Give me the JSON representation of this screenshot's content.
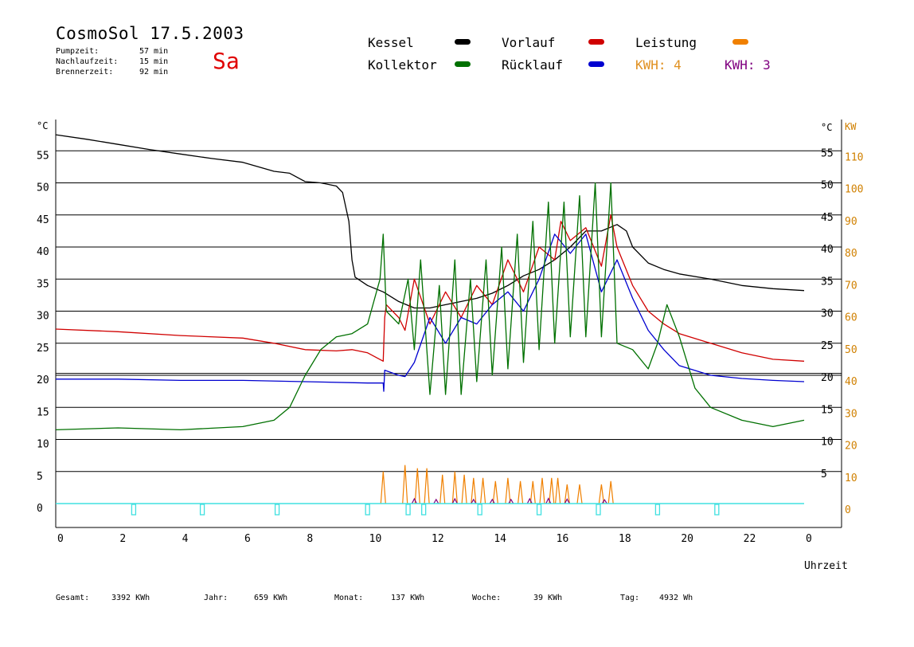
{
  "header": {
    "title": "CosmoSol 17.5.2003",
    "day": "Sa",
    "times": [
      {
        "label": "Pumpzeit:",
        "value": "57 min"
      },
      {
        "label": "Nachlaufzeit:",
        "value": "15 min"
      },
      {
        "label": "Brennerzeit:",
        "value": "92 min"
      }
    ]
  },
  "legend": {
    "kessel": "Kessel",
    "kollektor": "Kollektor",
    "vorlauf": "Vorlauf",
    "ruecklauf": "Rücklauf",
    "leistung": "Leistung",
    "kwh_a": "KWH: 4",
    "kwh_b": "KWH: 3"
  },
  "colors": {
    "kessel": "#000000",
    "kollektor": "#007000",
    "vorlauf": "#d00000",
    "ruecklauf": "#0000d0",
    "leistung": "#f08000",
    "kwh_b": "#800080",
    "pump": "#40e0e0"
  },
  "footer": [
    {
      "label": "Gesamt:",
      "value": "3392 KWh"
    },
    {
      "label": "Jahr:",
      "value": "659 KWh"
    },
    {
      "label": "Monat:",
      "value": "137 KWh"
    },
    {
      "label": "Woche:",
      "value": "39 KWh"
    },
    {
      "label": "Tag:",
      "value": "4932 Wh"
    }
  ],
  "chart_data": {
    "type": "line",
    "x_unit": "hour of day",
    "xlim": [
      0,
      24
    ],
    "x_ticks": [
      "0",
      "2",
      "4",
      "6",
      "8",
      "10",
      "12",
      "14",
      "16",
      "18",
      "20",
      "22",
      "0"
    ],
    "xlabel": "Uhrzeit",
    "ylabel_left": "°C",
    "ylabel_right_temp": "°C",
    "ylabel_right_power": "KW",
    "ylim": [
      0,
      55
    ],
    "y_ticks": [
      "0",
      "5",
      "10",
      "15",
      "20",
      "25",
      "30",
      "35",
      "40",
      "45",
      "50",
      "55"
    ],
    "y_ticks_right_temp": [
      "5",
      "10",
      "15",
      "20",
      "25",
      "30",
      "35",
      "40",
      "45",
      "50",
      "55"
    ],
    "y_ticks_right_power": [
      "0",
      "10",
      "20",
      "30",
      "40",
      "50",
      "60",
      "70",
      "80",
      "90",
      "100",
      "110"
    ],
    "grid": "horizontal",
    "series": [
      {
        "name": "Kessel",
        "color": "#000000",
        "points": [
          [
            0,
            57.5
          ],
          [
            1,
            56.8
          ],
          [
            2,
            56
          ],
          [
            3,
            55.2
          ],
          [
            4,
            54.5
          ],
          [
            5,
            53.8
          ],
          [
            6,
            53.2
          ],
          [
            6.5,
            52.5
          ],
          [
            7,
            51.8
          ],
          [
            7.5,
            51.5
          ],
          [
            8,
            50.2
          ],
          [
            8.5,
            50
          ],
          [
            9,
            49.5
          ],
          [
            9.2,
            48.5
          ],
          [
            9.4,
            44
          ],
          [
            9.5,
            38
          ],
          [
            9.6,
            35.3
          ],
          [
            10,
            34
          ],
          [
            10.5,
            33
          ],
          [
            11,
            31.5
          ],
          [
            11.5,
            30.5
          ],
          [
            12,
            30.5
          ],
          [
            12.5,
            31
          ],
          [
            13,
            31.5
          ],
          [
            13.5,
            32
          ],
          [
            14,
            32.8
          ],
          [
            14.5,
            34
          ],
          [
            15,
            35.5
          ],
          [
            15.5,
            36.5
          ],
          [
            16,
            38
          ],
          [
            16.5,
            40
          ],
          [
            17,
            42.5
          ],
          [
            17.5,
            42.5
          ],
          [
            18,
            43.5
          ],
          [
            18.3,
            42.5
          ],
          [
            18.5,
            40
          ],
          [
            19,
            37.5
          ],
          [
            19.5,
            36.5
          ],
          [
            20,
            35.8
          ],
          [
            21,
            35
          ],
          [
            22,
            34
          ],
          [
            23,
            33.5
          ],
          [
            24,
            33.2
          ]
        ]
      },
      {
        "name": "Vorlauf",
        "color": "#d00000",
        "points": [
          [
            0,
            27.2
          ],
          [
            2,
            26.8
          ],
          [
            4,
            26.2
          ],
          [
            6,
            25.8
          ],
          [
            7,
            25
          ],
          [
            8,
            24
          ],
          [
            9,
            23.8
          ],
          [
            9.5,
            24
          ],
          [
            10,
            23.5
          ],
          [
            10.5,
            22.2
          ],
          [
            10.55,
            29
          ],
          [
            10.6,
            31
          ],
          [
            11,
            29
          ],
          [
            11.2,
            27
          ],
          [
            11.5,
            35
          ],
          [
            12,
            28
          ],
          [
            12.5,
            33
          ],
          [
            13,
            29
          ],
          [
            13.5,
            34
          ],
          [
            14,
            31
          ],
          [
            14.5,
            38
          ],
          [
            15,
            33
          ],
          [
            15.5,
            40
          ],
          [
            16,
            38
          ],
          [
            16.2,
            44
          ],
          [
            16.5,
            41
          ],
          [
            17,
            43
          ],
          [
            17.5,
            37
          ],
          [
            17.8,
            45
          ],
          [
            18,
            40
          ],
          [
            18.5,
            34
          ],
          [
            19,
            30
          ],
          [
            19.5,
            28
          ],
          [
            20,
            26.5
          ],
          [
            21,
            25
          ],
          [
            22,
            23.5
          ],
          [
            23,
            22.5
          ],
          [
            24,
            22.2
          ]
        ]
      },
      {
        "name": "Rücklauf",
        "color": "#0000d0",
        "points": [
          [
            0,
            19.4
          ],
          [
            2,
            19.4
          ],
          [
            4,
            19.2
          ],
          [
            6,
            19.2
          ],
          [
            8,
            19
          ],
          [
            10,
            18.8
          ],
          [
            10.5,
            18.8
          ],
          [
            10.52,
            17.5
          ],
          [
            10.55,
            20.8
          ],
          [
            11,
            20
          ],
          [
            11.2,
            19.8
          ],
          [
            11.5,
            22
          ],
          [
            12,
            29
          ],
          [
            12.5,
            25
          ],
          [
            13,
            29
          ],
          [
            13.5,
            28
          ],
          [
            14,
            31
          ],
          [
            14.5,
            33
          ],
          [
            15,
            30
          ],
          [
            15.5,
            35
          ],
          [
            16,
            42
          ],
          [
            16.5,
            39
          ],
          [
            17,
            42
          ],
          [
            17.5,
            33
          ],
          [
            18,
            38
          ],
          [
            18.5,
            32
          ],
          [
            19,
            27
          ],
          [
            19.5,
            24
          ],
          [
            20,
            21.5
          ],
          [
            21,
            20
          ],
          [
            22,
            19.5
          ],
          [
            23,
            19.2
          ],
          [
            24,
            19
          ]
        ]
      },
      {
        "name": "Kollektor",
        "color": "#007000",
        "points": [
          [
            0,
            11.5
          ],
          [
            2,
            11.8
          ],
          [
            4,
            11.5
          ],
          [
            6,
            12
          ],
          [
            7,
            13
          ],
          [
            7.5,
            15
          ],
          [
            8,
            20
          ],
          [
            8.5,
            24
          ],
          [
            9,
            26
          ],
          [
            9.5,
            26.5
          ],
          [
            10,
            28
          ],
          [
            10.4,
            35
          ],
          [
            10.5,
            42
          ],
          [
            10.6,
            30
          ],
          [
            11,
            28
          ],
          [
            11.3,
            35
          ],
          [
            11.5,
            24
          ],
          [
            11.7,
            38
          ],
          [
            12,
            17
          ],
          [
            12.3,
            34
          ],
          [
            12.5,
            17
          ],
          [
            12.8,
            38
          ],
          [
            13,
            17
          ],
          [
            13.3,
            35
          ],
          [
            13.5,
            19
          ],
          [
            13.8,
            38
          ],
          [
            14,
            20
          ],
          [
            14.3,
            40
          ],
          [
            14.5,
            21
          ],
          [
            14.8,
            42
          ],
          [
            15,
            22
          ],
          [
            15.3,
            44
          ],
          [
            15.5,
            24
          ],
          [
            15.8,
            47
          ],
          [
            16,
            25
          ],
          [
            16.3,
            47
          ],
          [
            16.5,
            26
          ],
          [
            16.8,
            48
          ],
          [
            17,
            26
          ],
          [
            17.3,
            50
          ],
          [
            17.5,
            26
          ],
          [
            17.8,
            50
          ],
          [
            18,
            25
          ],
          [
            18.5,
            24
          ],
          [
            19,
            21
          ],
          [
            19.3,
            25
          ],
          [
            19.6,
            31
          ],
          [
            20,
            26
          ],
          [
            20.5,
            18
          ],
          [
            21,
            15
          ],
          [
            22,
            13
          ],
          [
            23,
            12
          ],
          [
            24,
            13
          ]
        ]
      },
      {
        "name": "Leistung",
        "color": "#f08000",
        "axis": "power_kw",
        "peaks": [
          [
            10.5,
            10
          ],
          [
            11.2,
            12
          ],
          [
            11.6,
            11
          ],
          [
            11.9,
            11
          ],
          [
            12.4,
            9
          ],
          [
            12.8,
            10
          ],
          [
            13.1,
            9
          ],
          [
            13.4,
            8
          ],
          [
            13.7,
            8
          ],
          [
            14.1,
            7
          ],
          [
            14.5,
            8
          ],
          [
            14.9,
            7
          ],
          [
            15.3,
            7
          ],
          [
            15.6,
            8
          ],
          [
            15.9,
            8
          ],
          [
            16.1,
            8
          ],
          [
            16.4,
            6
          ],
          [
            16.8,
            6
          ],
          [
            17.5,
            6
          ],
          [
            17.8,
            7
          ]
        ]
      },
      {
        "name": "KWH: 3",
        "color": "#800080",
        "axis": "power_kw",
        "peaks": [
          [
            11.5,
            1.5
          ],
          [
            12.2,
            1.3
          ],
          [
            12.8,
            1.5
          ],
          [
            13.4,
            1.3
          ],
          [
            14,
            1.3
          ],
          [
            14.6,
            1.3
          ],
          [
            15.2,
            1.5
          ],
          [
            15.8,
            1.6
          ],
          [
            16.4,
            1.4
          ],
          [
            17.6,
            1.2
          ]
        ]
      }
    ],
    "pump_markers_x": [
      2.5,
      4.7,
      7.1,
      10,
      11.3,
      11.8,
      13.6,
      15.5,
      17.4,
      19.3,
      21.2
    ]
  }
}
